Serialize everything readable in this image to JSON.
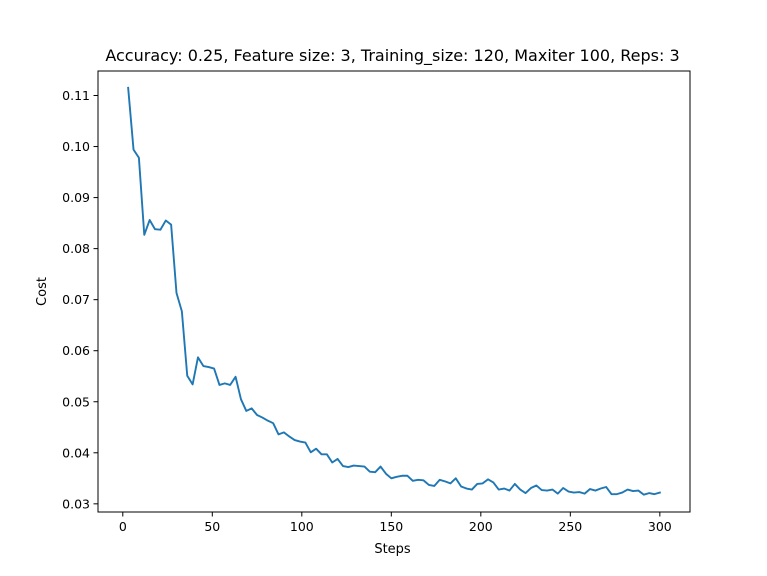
{
  "chart_data": {
    "type": "line",
    "title": "Accuracy: 0.25, Feature size: 3, Training_size: 120, Maxiter 100, Reps: 3",
    "xlabel": "Steps",
    "ylabel": "Cost",
    "xlim": [
      -13.85,
      316.85
    ],
    "ylim": [
      0.0284,
      0.1148
    ],
    "grid": false,
    "line_color": "#1f77b4",
    "xticks": [
      0,
      50,
      100,
      150,
      200,
      250,
      300
    ],
    "xtick_labels": [
      "0",
      "50",
      "100",
      "150",
      "200",
      "250",
      "300"
    ],
    "yticks": [
      0.03,
      0.04,
      0.05,
      0.06,
      0.07,
      0.08,
      0.09,
      0.1,
      0.11
    ],
    "ytick_labels": [
      "0.03",
      "0.04",
      "0.05",
      "0.06",
      "0.07",
      "0.08",
      "0.09",
      "0.10",
      "0.11"
    ],
    "series": [
      {
        "x": [
          3,
          6,
          9,
          12,
          15,
          18,
          21,
          24,
          27,
          30,
          33,
          36,
          39,
          42,
          45,
          48,
          51,
          54,
          57,
          60,
          63,
          66,
          69,
          72,
          75,
          78,
          81,
          84,
          87,
          90,
          93,
          96,
          99,
          102,
          105,
          108,
          111,
          114,
          117,
          120,
          123,
          126,
          129,
          132,
          135,
          138,
          141,
          144,
          147,
          150,
          153,
          156,
          159,
          162,
          165,
          168,
          171,
          174,
          177,
          180,
          183,
          186,
          189,
          192,
          195,
          198,
          201,
          204,
          207,
          210,
          213,
          216,
          219,
          222,
          225,
          228,
          231,
          234,
          237,
          240,
          243,
          246,
          249,
          252,
          255,
          258,
          261,
          264,
          267,
          270,
          273,
          276,
          279,
          282,
          285,
          288,
          291,
          294,
          297,
          300
        ],
        "y": [
          0.1115,
          0.0994,
          0.0978,
          0.0827,
          0.0856,
          0.0838,
          0.0837,
          0.0855,
          0.0847,
          0.0713,
          0.0677,
          0.0551,
          0.0534,
          0.0587,
          0.057,
          0.0568,
          0.0565,
          0.0533,
          0.0536,
          0.0533,
          0.0549,
          0.0505,
          0.0482,
          0.0487,
          0.0474,
          0.0469,
          0.0463,
          0.0458,
          0.0436,
          0.044,
          0.0432,
          0.0425,
          0.0422,
          0.042,
          0.0401,
          0.0408,
          0.0397,
          0.0397,
          0.0381,
          0.0388,
          0.0374,
          0.0372,
          0.0375,
          0.0374,
          0.0373,
          0.0363,
          0.0362,
          0.0373,
          0.0359,
          0.035,
          0.0353,
          0.0355,
          0.0355,
          0.0345,
          0.0347,
          0.0346,
          0.0337,
          0.0335,
          0.0347,
          0.0344,
          0.034,
          0.035,
          0.0334,
          0.033,
          0.0328,
          0.0339,
          0.034,
          0.0348,
          0.0342,
          0.0328,
          0.033,
          0.0326,
          0.0339,
          0.0328,
          0.0321,
          0.0331,
          0.0336,
          0.0327,
          0.0326,
          0.0328,
          0.032,
          0.0331,
          0.0324,
          0.0322,
          0.0323,
          0.032,
          0.0329,
          0.0326,
          0.033,
          0.0333,
          0.0319,
          0.0319,
          0.0322,
          0.0328,
          0.0325,
          0.0326,
          0.0318,
          0.0321,
          0.0319,
          0.0322
        ]
      }
    ]
  }
}
